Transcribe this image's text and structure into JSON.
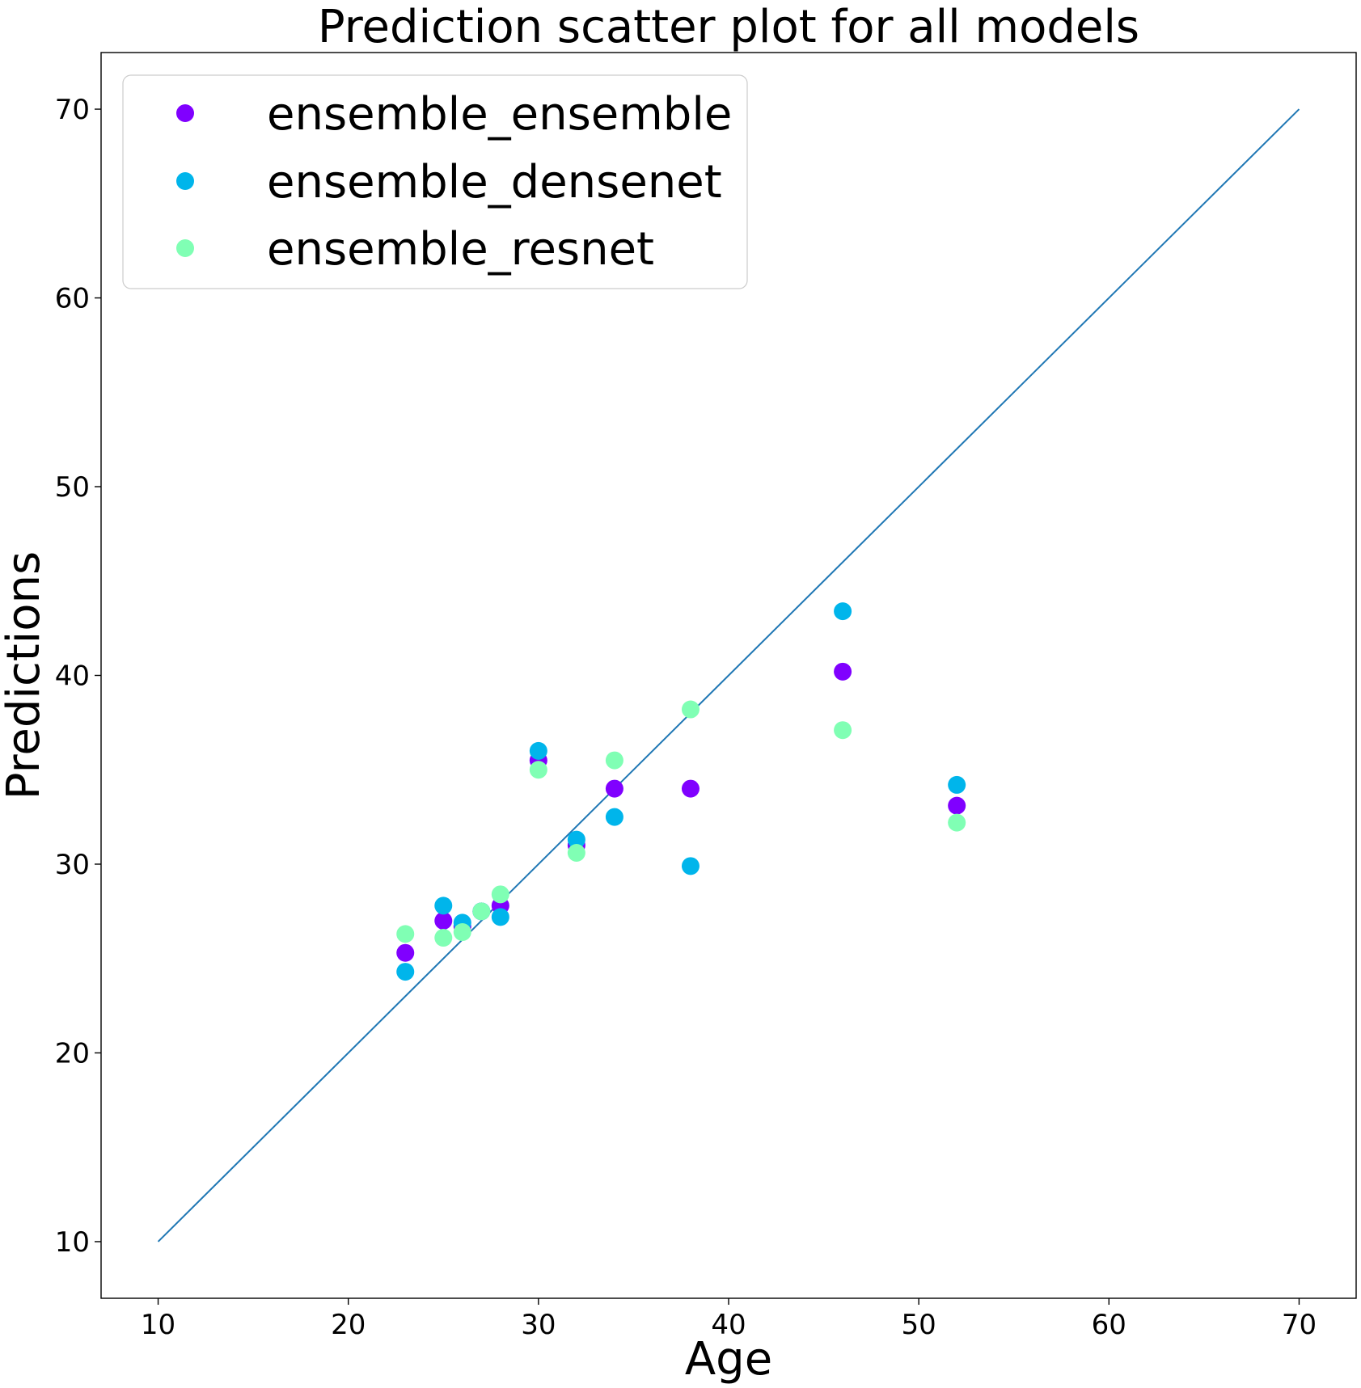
{
  "chart_data": {
    "type": "scatter",
    "title": "Prediction scatter plot for all models",
    "xlabel": "Age",
    "ylabel": "Predictions",
    "xlim": [
      7,
      73
    ],
    "ylim": [
      7,
      73
    ],
    "xticks": [
      10,
      20,
      30,
      40,
      50,
      60,
      70
    ],
    "yticks": [
      10,
      20,
      30,
      40,
      50,
      60,
      70
    ],
    "grid": false,
    "legend_position": "top-left",
    "reference_line": {
      "x": [
        10,
        70
      ],
      "y": [
        10,
        70
      ],
      "color": "#1f77b4"
    },
    "series": [
      {
        "name": "ensemble_ensemble",
        "color": "#8000ff",
        "points": [
          [
            23,
            25.3
          ],
          [
            25,
            27.0
          ],
          [
            26,
            26.7
          ],
          [
            27,
            27.5
          ],
          [
            28,
            27.8
          ],
          [
            30,
            35.5
          ],
          [
            32,
            31.0
          ],
          [
            34,
            34.0
          ],
          [
            38,
            34.0
          ],
          [
            46,
            40.2
          ],
          [
            52,
            33.1
          ]
        ]
      },
      {
        "name": "ensemble_densenet",
        "color": "#00b5eb",
        "points": [
          [
            23,
            24.3
          ],
          [
            25,
            27.8
          ],
          [
            26,
            26.9
          ],
          [
            27,
            27.5
          ],
          [
            28,
            27.2
          ],
          [
            30,
            36.0
          ],
          [
            32,
            31.3
          ],
          [
            34,
            32.5
          ],
          [
            38,
            29.9
          ],
          [
            46,
            43.4
          ],
          [
            52,
            34.2
          ]
        ]
      },
      {
        "name": "ensemble_resnet",
        "color": "#80ffb4",
        "points": [
          [
            23,
            26.3
          ],
          [
            25,
            26.1
          ],
          [
            26,
            26.4
          ],
          [
            27,
            27.5
          ],
          [
            28,
            28.4
          ],
          [
            30,
            35.0
          ],
          [
            32,
            30.6
          ],
          [
            34,
            35.5
          ],
          [
            38,
            38.2
          ],
          [
            46,
            37.1
          ],
          [
            52,
            32.2
          ]
        ]
      }
    ]
  }
}
